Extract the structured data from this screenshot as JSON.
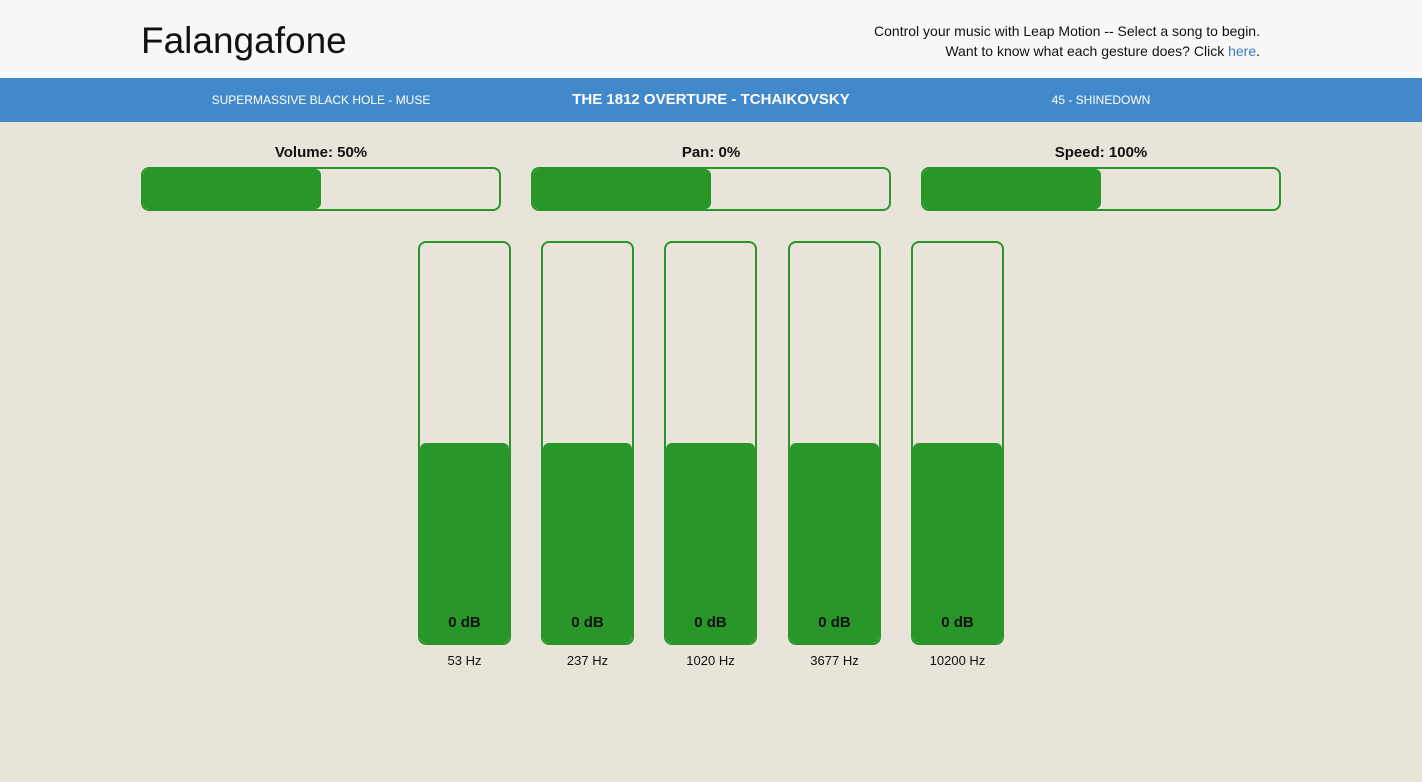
{
  "header": {
    "title": "Falangafone",
    "intro_line1": "Control your music with Leap Motion -- Select a song to begin.",
    "intro_line2_prefix": "Want to know what each gesture does? Click ",
    "intro_link": "here",
    "intro_line2_suffix": "."
  },
  "songs": {
    "previous": "Supermassive Black Hole - Muse",
    "current": "The 1812 Overture - Tchaikovsky",
    "next": "45 - Shinedown"
  },
  "controls": {
    "volume": {
      "label": "Volume: 50%",
      "level": 0.5
    },
    "pan": {
      "label": "Pan: 0%",
      "level": 0.5
    },
    "speed": {
      "label": "Speed: 100%",
      "level": 0.5
    }
  },
  "equalizer": [
    {
      "gain": "0 dB",
      "freq": "53 Hz",
      "level": 0.5
    },
    {
      "gain": "0 dB",
      "freq": "237 Hz",
      "level": 0.5
    },
    {
      "gain": "0 dB",
      "freq": "1020 Hz",
      "level": 0.5
    },
    {
      "gain": "0 dB",
      "freq": "3677 Hz",
      "level": 0.5
    },
    {
      "gain": "0 dB",
      "freq": "10200 Hz",
      "level": 0.5
    }
  ],
  "colors": {
    "accent_green": "#289628",
    "songbar_blue": "#4289cb",
    "link_blue": "#3a7ac0"
  }
}
